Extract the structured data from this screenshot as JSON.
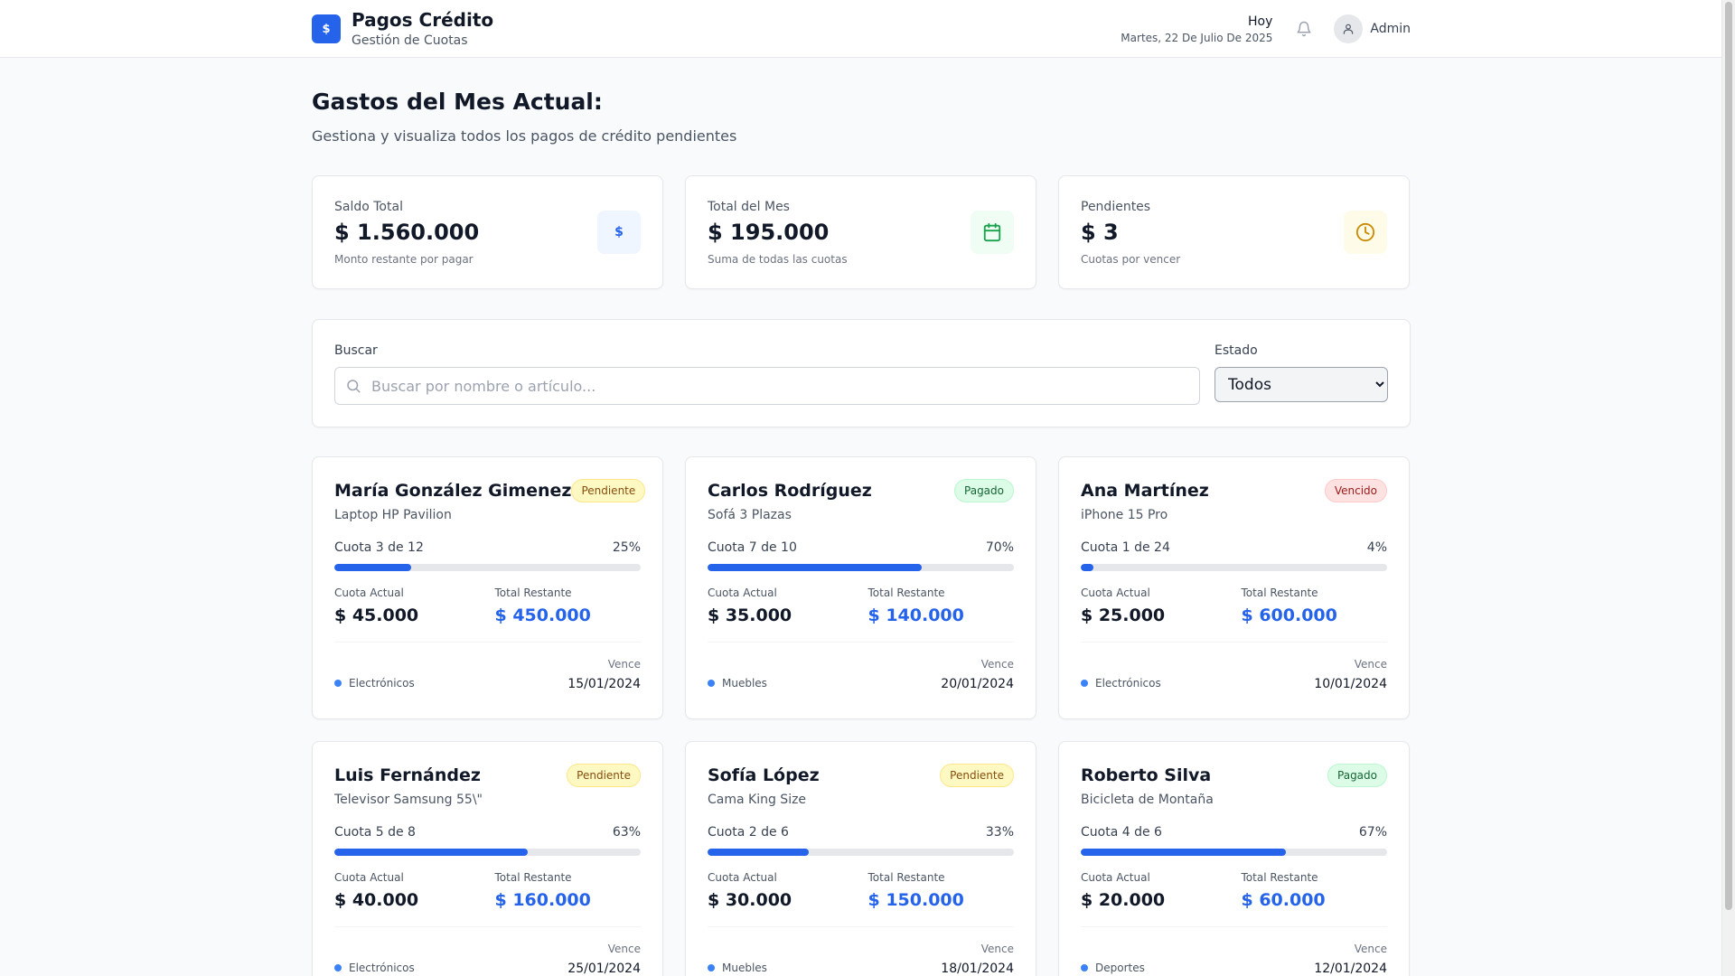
{
  "header": {
    "brand_symbol": "$",
    "title": "Pagos Crédito",
    "subtitle": "Gestión de Cuotas",
    "date_label": "Hoy",
    "date_value": "Martes, 22 De Julio De 2025",
    "user_name": "Admin",
    "icons": {
      "bell": "bell-icon",
      "avatar": "user-icon"
    }
  },
  "page": {
    "title": "Gastos del Mes Actual:",
    "subtitle": "Gestiona y visualiza todos los pagos de crédito pendientes"
  },
  "stats": [
    {
      "label": "Saldo Total",
      "value": "$ 1.560.000",
      "note": "Monto restante por pagar",
      "icon": "dollar-icon",
      "icon_color": "#2563eb",
      "icon_bg": "#eff6ff"
    },
    {
      "label": "Total del Mes",
      "value": "$ 195.000",
      "note": "Suma de todas las cuotas",
      "icon": "calendar-icon",
      "icon_color": "#16a34a",
      "icon_bg": "#f0fdf4"
    },
    {
      "label": "Pendientes",
      "value": "$ 3",
      "note": "Cuotas por vencer",
      "icon": "clock-icon",
      "icon_color": "#ca8a04",
      "icon_bg": "#fefce8"
    }
  ],
  "filters": {
    "search_label": "Buscar",
    "search_placeholder": "Buscar por nombre o artículo...",
    "search_value": "",
    "state_label": "Estado",
    "state_selected": "Todos"
  },
  "labels": {
    "current_installment": "Cuota Actual",
    "total_remaining": "Total Restante",
    "due": "Vence"
  },
  "colors": {
    "accent": "#2563eb",
    "pending": "#fef9c3",
    "paid": "#dcfce7",
    "overdue": "#fee2e2"
  },
  "payments": [
    {
      "name": "María González Gimenez",
      "status": "Pendiente",
      "status_type": "pending",
      "item": "Laptop HP Pavilion",
      "installment": "Cuota 3 de 12",
      "percent_label": "25%",
      "percent": 25,
      "current_amount": "$ 45.000",
      "remaining_amount": "$ 450.000",
      "category": "Electrónicos",
      "due_date": "15/01/2024"
    },
    {
      "name": "Carlos Rodríguez",
      "status": "Pagado",
      "status_type": "paid",
      "item": "Sofá 3 Plazas",
      "installment": "Cuota 7 de 10",
      "percent_label": "70%",
      "percent": 70,
      "current_amount": "$ 35.000",
      "remaining_amount": "$ 140.000",
      "category": "Muebles",
      "due_date": "20/01/2024"
    },
    {
      "name": "Ana Martínez",
      "status": "Vencido",
      "status_type": "overdue",
      "item": "iPhone 15 Pro",
      "installment": "Cuota 1 de 24",
      "percent_label": "4%",
      "percent": 4,
      "current_amount": "$ 25.000",
      "remaining_amount": "$ 600.000",
      "category": "Electrónicos",
      "due_date": "10/01/2024"
    },
    {
      "name": "Luis Fernández",
      "status": "Pendiente",
      "status_type": "pending",
      "item": "Televisor Samsung 55\\\"",
      "installment": "Cuota 5 de 8",
      "percent_label": "63%",
      "percent": 63,
      "current_amount": "$ 40.000",
      "remaining_amount": "$ 160.000",
      "category": "Electrónicos",
      "due_date": "25/01/2024"
    },
    {
      "name": "Sofía López",
      "status": "Pendiente",
      "status_type": "pending",
      "item": "Cama King Size",
      "installment": "Cuota 2 de 6",
      "percent_label": "33%",
      "percent": 33,
      "current_amount": "$ 30.000",
      "remaining_amount": "$ 150.000",
      "category": "Muebles",
      "due_date": "18/01/2024"
    },
    {
      "name": "Roberto Silva",
      "status": "Pagado",
      "status_type": "paid",
      "item": "Bicicleta de Montaña",
      "installment": "Cuota 4 de 6",
      "percent_label": "67%",
      "percent": 67,
      "current_amount": "$ 20.000",
      "remaining_amount": "$ 60.000",
      "category": "Deportes",
      "due_date": "12/01/2024"
    }
  ]
}
